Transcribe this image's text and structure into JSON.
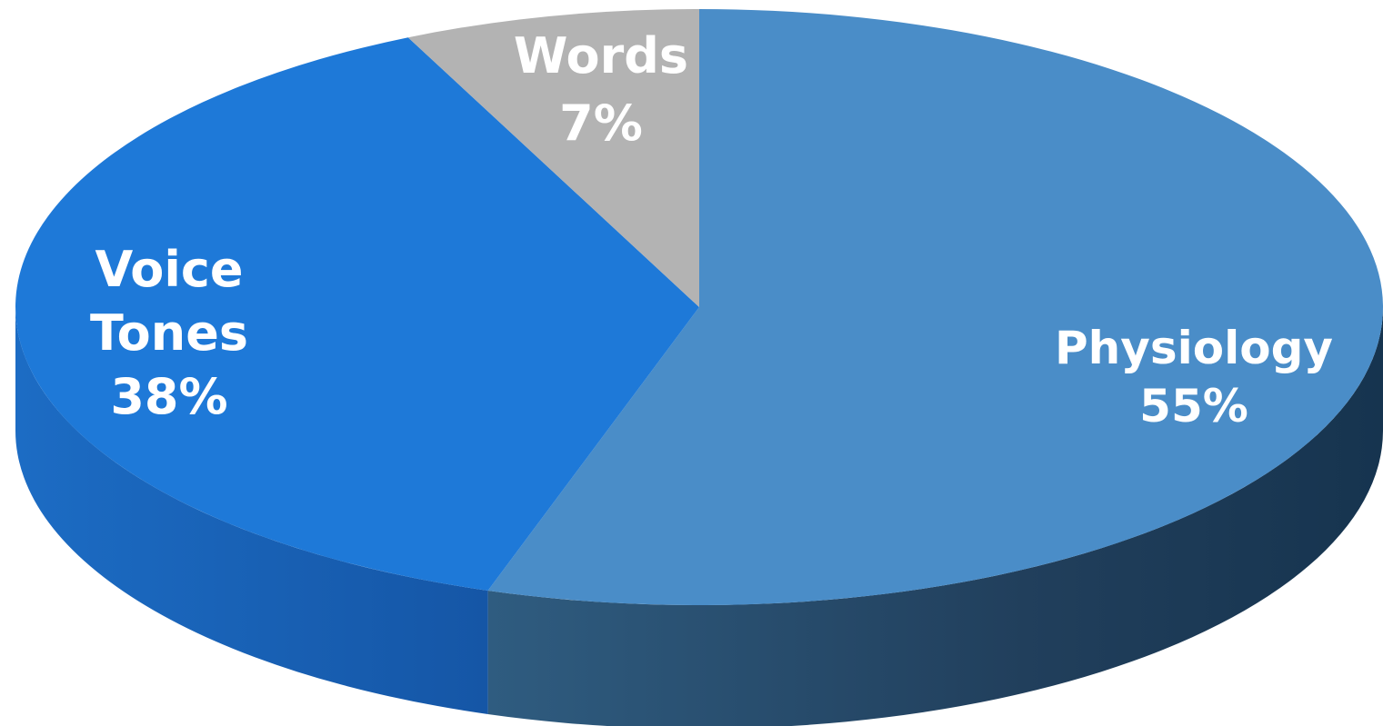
{
  "chart_data": {
    "type": "pie",
    "style": "3d",
    "legend": "none",
    "slices": [
      {
        "label_lines": [
          "Physiology",
          "55%"
        ],
        "category": "Physiology",
        "value": 55,
        "color": "#4a8dc8"
      },
      {
        "label_lines": [
          "Voice",
          "Tones",
          "38%"
        ],
        "category": "Voice Tones",
        "value": 38,
        "color": "#1e79d8"
      },
      {
        "label_lines": [
          "Words",
          "7%"
        ],
        "category": "Words",
        "value": 7,
        "color": "#b3b3b3"
      }
    ]
  }
}
